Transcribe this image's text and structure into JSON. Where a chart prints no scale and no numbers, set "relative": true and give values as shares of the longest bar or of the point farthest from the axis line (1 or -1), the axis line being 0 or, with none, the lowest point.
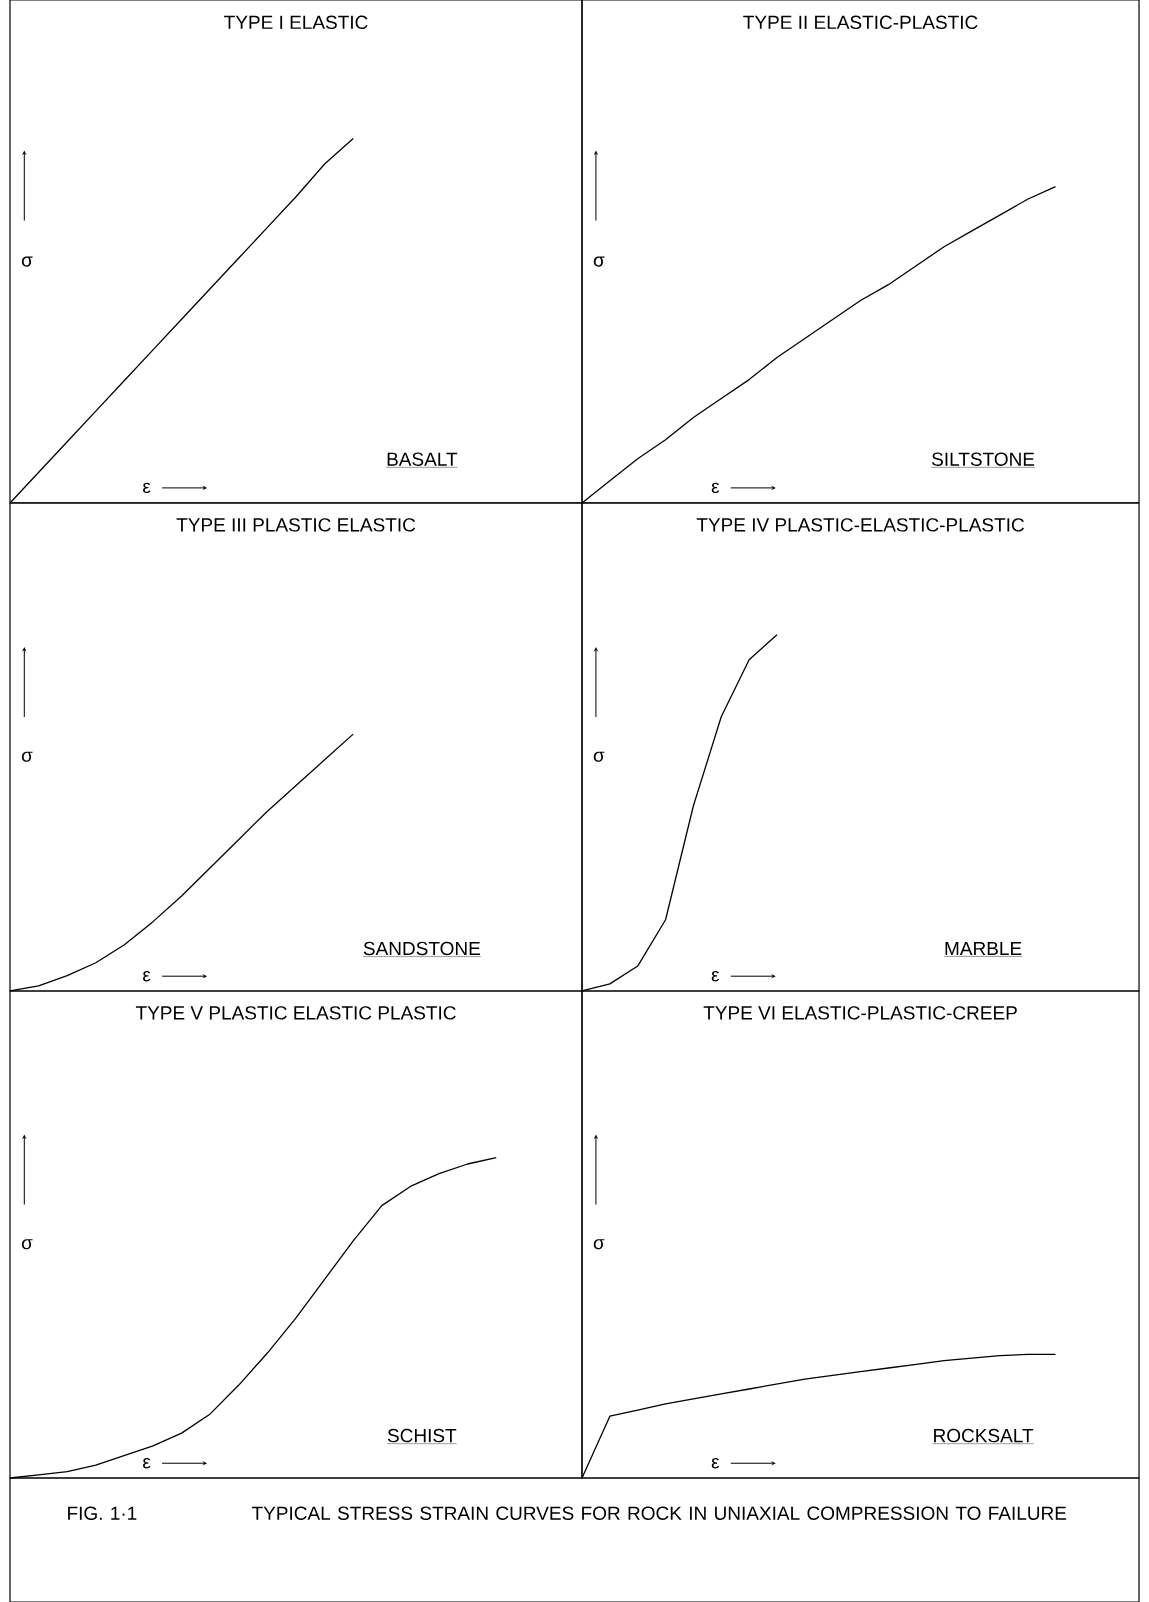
{
  "chart_data": [
    {
      "type": "line",
      "title": "TYPE I ELASTIC",
      "xlabel": "ε",
      "ylabel": "σ",
      "annotations": [
        "BASALT"
      ],
      "relative": true,
      "color": "#000000",
      "categories": [
        null,
        null,
        null,
        null,
        null,
        null,
        null,
        null,
        null,
        null,
        null,
        null,
        null,
        null,
        null,
        null,
        null,
        null,
        null,
        null,
        null
      ],
      "values": [
        0,
        0.084,
        0.168,
        0.252,
        0.336,
        0.42,
        0.504,
        0.588,
        0.672,
        0.756,
        0.84,
        0.93,
        1,
        null,
        null,
        null,
        null,
        null,
        null,
        null,
        null
      ]
    },
    {
      "type": "line",
      "title": "TYPE II ELASTIC-PLASTIC",
      "xlabel": "ε",
      "ylabel": "σ",
      "annotations": [
        "SILTSTONE"
      ],
      "relative": true,
      "color": "#000000",
      "categories": [
        null,
        null,
        null,
        null,
        null,
        null,
        null,
        null,
        null,
        null,
        null,
        null,
        null,
        null,
        null,
        null,
        null,
        null,
        null,
        null,
        null
      ],
      "values": [
        0,
        0.07,
        0.14,
        0.2,
        0.27,
        0.33,
        0.39,
        0.46,
        0.52,
        0.58,
        0.64,
        0.69,
        0.75,
        0.81,
        0.86,
        0.91,
        0.96,
        1,
        null,
        null,
        null
      ]
    },
    {
      "type": "line",
      "title": "TYPE III PLASTIC ELASTIC",
      "xlabel": "ε",
      "ylabel": "σ",
      "annotations": [
        "SANDSTONE"
      ],
      "relative": true,
      "color": "#000000",
      "categories": [
        null,
        null,
        null,
        null,
        null,
        null,
        null,
        null,
        null,
        null,
        null,
        null,
        null,
        null,
        null,
        null,
        null,
        null,
        null,
        null,
        null
      ],
      "values": [
        0,
        0.02,
        0.06,
        0.11,
        0.18,
        0.27,
        0.37,
        0.48,
        0.59,
        0.7,
        0.8,
        0.9,
        1,
        null,
        null,
        null,
        null,
        null,
        null,
        null,
        null
      ]
    },
    {
      "type": "line",
      "title": "TYPE IV PLASTIC-ELASTIC-PLASTIC",
      "xlabel": "ε",
      "ylabel": "σ",
      "annotations": [
        "MARBLE"
      ],
      "relative": true,
      "color": "#000000",
      "categories": [
        null,
        null,
        null,
        null,
        null,
        null,
        null,
        null,
        null,
        null,
        null,
        null,
        null,
        null,
        null,
        null,
        null,
        null,
        null,
        null,
        null
      ],
      "values": [
        0,
        0.02,
        0.07,
        0.2,
        0.52,
        0.77,
        0.93,
        1,
        null,
        null,
        null,
        null,
        null,
        null,
        null,
        null,
        null,
        null,
        null,
        null,
        null
      ]
    },
    {
      "type": "line",
      "title": "TYPE V PLASTIC ELASTIC PLASTIC",
      "xlabel": "ε",
      "ylabel": "σ",
      "annotations": [
        "SCHIST"
      ],
      "relative": true,
      "color": "#000000",
      "categories": [
        null,
        null,
        null,
        null,
        null,
        null,
        null,
        null,
        null,
        null,
        null,
        null,
        null,
        null,
        null,
        null,
        null,
        null,
        null,
        null,
        null
      ],
      "values": [
        0,
        0.01,
        0.02,
        0.04,
        0.07,
        0.1,
        0.14,
        0.2,
        0.29,
        0.39,
        0.5,
        0.62,
        0.74,
        0.85,
        0.91,
        0.95,
        0.98,
        1,
        null,
        null,
        null
      ]
    },
    {
      "type": "line",
      "title": "TYPE VI ELASTIC-PLASTIC-CREEP",
      "xlabel": "ε",
      "ylabel": "σ",
      "annotations": [
        "ROCKSALT"
      ],
      "relative": true,
      "color": "#000000",
      "categories": [
        null,
        null,
        null,
        null,
        null,
        null,
        null,
        null,
        null,
        null,
        null,
        null,
        null,
        null,
        null,
        null,
        null,
        null,
        null,
        null,
        null
      ],
      "values": [
        0,
        0.5,
        0.55,
        0.6,
        0.64,
        0.68,
        0.72,
        0.76,
        0.8,
        0.83,
        0.86,
        0.89,
        0.92,
        0.95,
        0.97,
        0.99,
        1,
        1,
        null,
        null,
        null
      ]
    },
    {
      "type": "other",
      "annotations": [
        "FIG. 1·1",
        "TYPICAL STRESS STRAIN CURVES FOR ROCK IN UNIAXIAL COMPRESSION TO FAILURE"
      ]
    }
  ]
}
